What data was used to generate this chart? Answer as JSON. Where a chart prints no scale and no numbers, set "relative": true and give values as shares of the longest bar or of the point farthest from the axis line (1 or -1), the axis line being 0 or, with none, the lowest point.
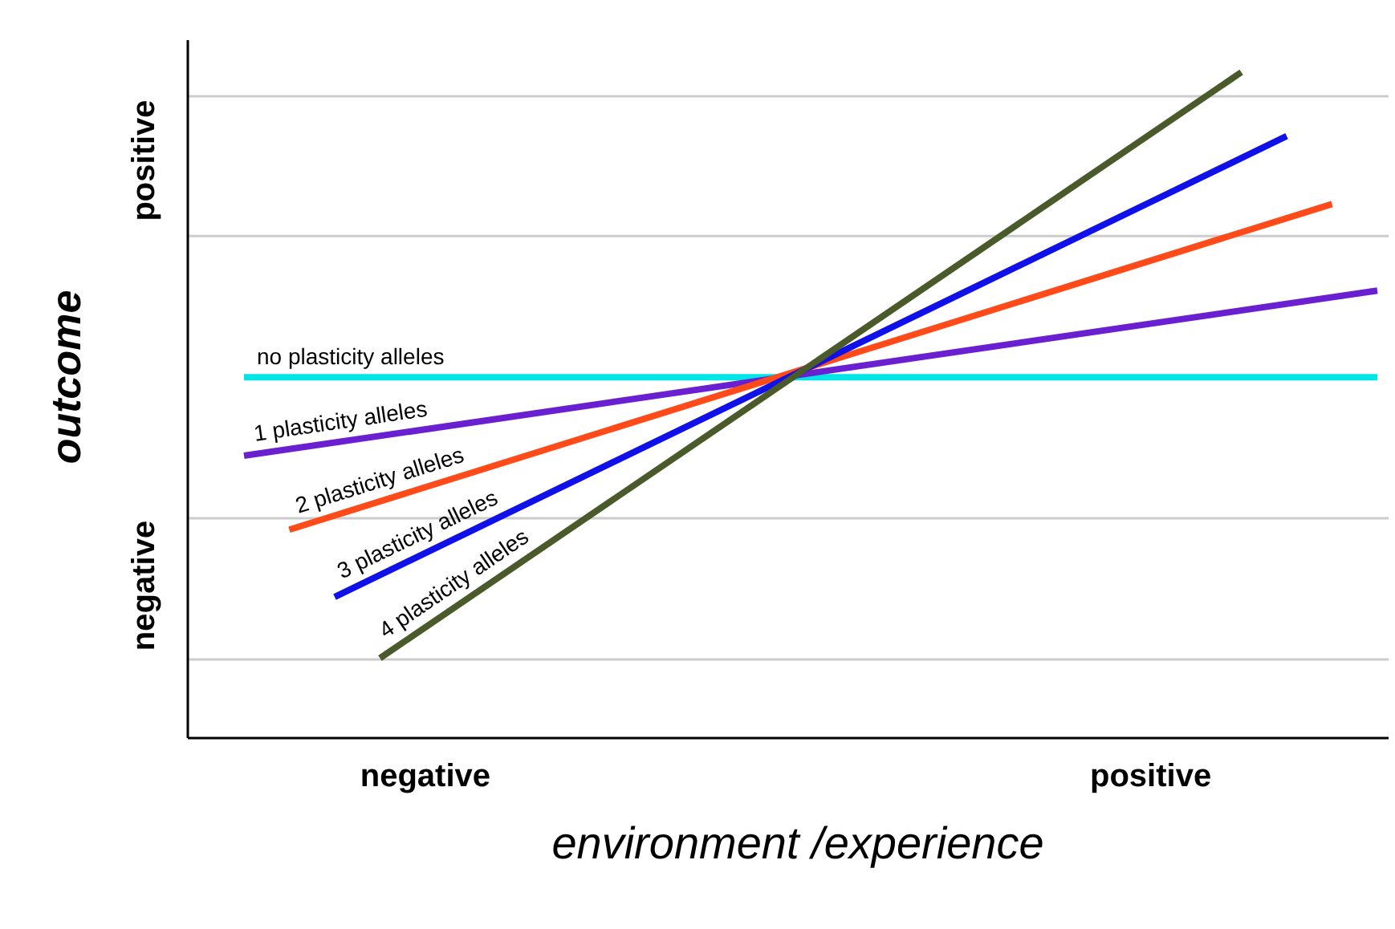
{
  "chart_data": {
    "type": "line",
    "relative": true,
    "xlabel": "environment /experience",
    "ylabel": "outcome",
    "categories": [
      null,
      null,
      null,
      null,
      "negative",
      null,
      null,
      null,
      null,
      null,
      null,
      null,
      null,
      null,
      null,
      null,
      null,
      null,
      null,
      null,
      "positive",
      null,
      null,
      null,
      null,
      null
    ],
    "annotations": [
      "positive",
      "negative"
    ],
    "ref_lines": [
      {
        "axis": "y",
        "value": 0.964,
        "color": "#cccccc"
      },
      {
        "axis": "y",
        "value": 0.754,
        "color": "#cccccc"
      },
      {
        "axis": "y",
        "value": 0.33,
        "color": "#cccccc"
      },
      {
        "axis": "y",
        "value": 0.118,
        "color": "#cccccc"
      }
    ],
    "series": [
      {
        "name": "no plasticity alleles",
        "color": "#00e5e5",
        "values": [
          0.542,
          null,
          null,
          null,
          null,
          null,
          null,
          null,
          null,
          null,
          null,
          null,
          null,
          null,
          null,
          null,
          null,
          null,
          null,
          null,
          null,
          null,
          null,
          null,
          null,
          0.542
        ]
      },
      {
        "name": "1 plasticity alleles",
        "color": "#6a1fd0",
        "values": [
          0.424,
          null,
          null,
          null,
          null,
          null,
          null,
          null,
          null,
          null,
          null,
          null,
          null,
          null,
          null,
          null,
          null,
          null,
          null,
          null,
          null,
          null,
          null,
          null,
          null,
          0.672
        ]
      },
      {
        "name": "2 plasticity alleles",
        "color": "#ff4a1a",
        "values": [
          null,
          0.313,
          null,
          null,
          null,
          null,
          null,
          null,
          null,
          null,
          null,
          null,
          null,
          null,
          null,
          null,
          null,
          null,
          null,
          null,
          null,
          null,
          null,
          null,
          0.802,
          null
        ]
      },
      {
        "name": "3 plasticity alleles",
        "color": "#1010e8",
        "values": [
          null,
          null,
          0.212,
          null,
          null,
          null,
          null,
          null,
          null,
          null,
          null,
          null,
          null,
          null,
          null,
          null,
          null,
          null,
          null,
          null,
          null,
          null,
          null,
          0.904,
          null,
          null
        ]
      },
      {
        "name": "4 plasticity alleles",
        "color": "#4a5a2a",
        "values": [
          null,
          null,
          null,
          0.12,
          null,
          null,
          null,
          null,
          null,
          null,
          null,
          null,
          null,
          null,
          null,
          null,
          null,
          null,
          null,
          null,
          null,
          null,
          1.0,
          null,
          null,
          null
        ]
      }
    ]
  }
}
